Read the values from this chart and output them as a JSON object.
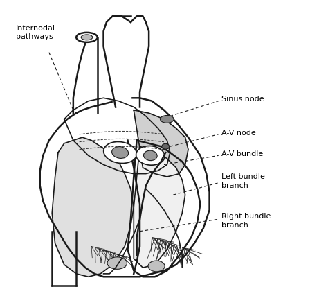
{
  "bg_color": "#ffffff",
  "line_color": "#1a1a1a",
  "label_color": "#000000",
  "fig_width": 4.74,
  "fig_height": 4.4,
  "dpi": 100,
  "labels": {
    "internodal_pathways": "Internodal\npathways",
    "sinus_node": "Sinus node",
    "av_node": "A-V node",
    "av_bundle": "A-V bundle",
    "left_bundle": "Left bundle\nbranch",
    "right_bundle": "Right bundle\nbranch"
  }
}
